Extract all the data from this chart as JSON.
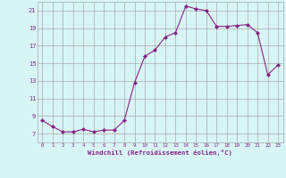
{
  "x": [
    0,
    1,
    2,
    3,
    4,
    5,
    6,
    7,
    8,
    9,
    10,
    11,
    12,
    13,
    14,
    15,
    16,
    17,
    18,
    19,
    20,
    21,
    22,
    23
  ],
  "y": [
    8.5,
    7.8,
    7.2,
    7.2,
    7.5,
    7.2,
    7.4,
    7.4,
    8.5,
    12.8,
    15.8,
    16.5,
    18.0,
    18.5,
    21.5,
    21.2,
    21.0,
    19.2,
    19.2,
    19.3,
    19.4,
    18.5,
    13.7,
    14.8
  ],
  "line_color": "#882288",
  "marker": "D",
  "marker_size": 2,
  "bg_color": "#d8f5f5",
  "grid_color": "#aaaaaa",
  "xlabel": "Windchill (Refroidissement éolien,°C)",
  "xlabel_color": "#882288",
  "tick_color": "#882288",
  "ylim": [
    6,
    22
  ],
  "xlim": [
    -0.5,
    23.5
  ],
  "yticks": [
    7,
    9,
    11,
    13,
    15,
    17,
    19,
    21
  ],
  "xtick_labels": [
    "0",
    "1",
    "2",
    "3",
    "4",
    "5",
    "6",
    "7",
    "8",
    "9",
    "10",
    "11",
    "12",
    "13",
    "14",
    "15",
    "16",
    "17",
    "18",
    "19",
    "20",
    "21",
    "22",
    "23"
  ]
}
